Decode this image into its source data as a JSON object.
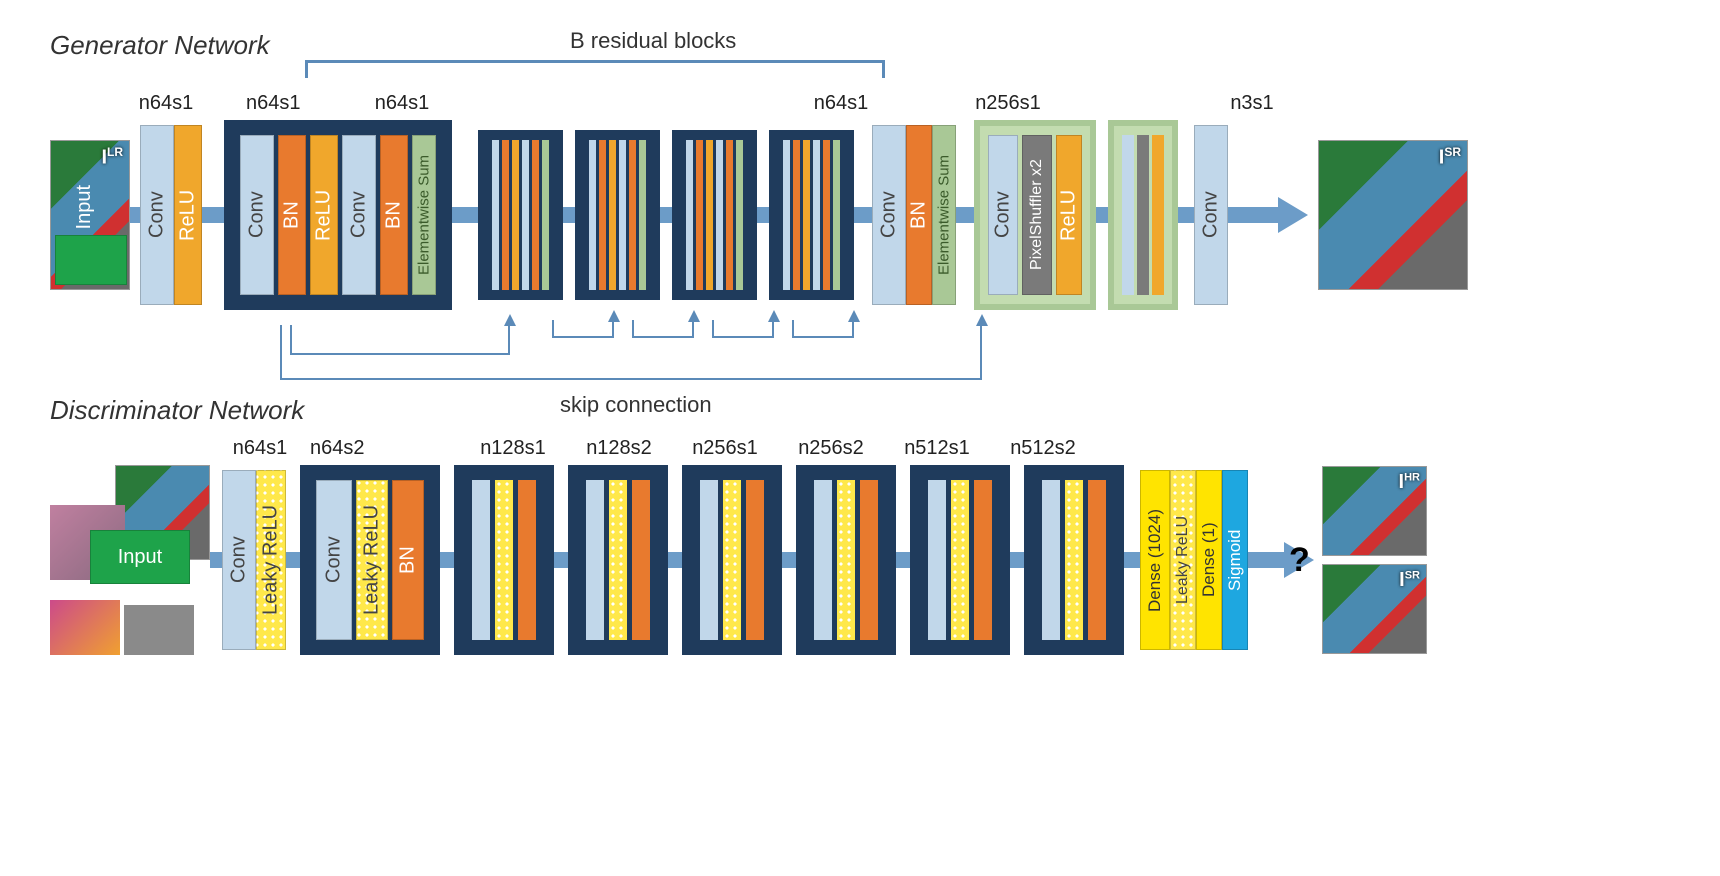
{
  "generator": {
    "title": "Generator Network",
    "residual_label": "B residual blocks",
    "skip_label": "skip connection",
    "input_tag": "I<sup>LR</sup>",
    "output_tag": "I<sup>SR</sup>",
    "colors": {
      "conv": "#c1d7ea",
      "relu": "#f0a72c",
      "bn": "#e87a2e",
      "input": "#1ea34a",
      "elemsum": "#a9c896",
      "pixelshuffle": "#7a7a7a",
      "dark_container": "#1f3b5c",
      "light_container": "#c3dcb0",
      "flow": "#6c9cc8"
    },
    "top_labels": [
      "n64s1",
      "n64s1",
      "n64s1",
      "n64s1",
      "n256s1",
      "n3s1"
    ],
    "layers": {
      "input": "Input",
      "conv": "Conv",
      "relu": "ReLU",
      "bn": "BN",
      "elemsum": "Elementwise Sum",
      "pixelshuffle": "PixelShuffler x2"
    },
    "heights": {
      "main": 180,
      "inner": 160,
      "mini": 140,
      "input_h": 150,
      "input_w": 80
    }
  },
  "discriminator": {
    "title": "Discriminator Network",
    "top_labels": [
      "n64s1",
      "n64s2",
      "n128s1",
      "n128s2",
      "n256s1",
      "n256s2",
      "n512s1",
      "n512s2"
    ],
    "layers": {
      "input": "Input",
      "conv": "Conv",
      "lrelu": "Leaky ReLU",
      "bn": "BN",
      "dense1024": "Dense (1024)",
      "dense1": "Dense (1)",
      "sigmoid": "Sigmoid"
    },
    "colors": {
      "conv": "#c1d7ea",
      "lrelu_hatch": "#ffe84a",
      "bn": "#e87a2e",
      "dense": "#ffe400",
      "sigmoid": "#1ea7e0",
      "input": "#1ea34a",
      "dark_container": "#1f3b5c"
    },
    "output_tags": [
      "I<sup>HR</sup>",
      "I<sup>SR</sup>"
    ],
    "question": "?"
  },
  "fonts": {
    "title": 26,
    "label": 20,
    "block_text": 20
  }
}
